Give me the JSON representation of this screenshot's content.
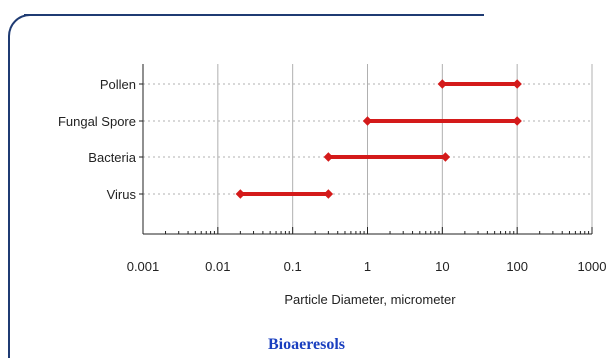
{
  "caption": "Bioaeresols",
  "colors": {
    "frame": "#1f3b73",
    "caption": "#1a3fbf",
    "range": "#d41a1a",
    "grid": "#b0b0b0",
    "axis": "#222222"
  },
  "chart_data": {
    "type": "range-bar",
    "x_scale": "log",
    "xlim": [
      0.001,
      1000
    ],
    "xlabel": "Particle Diameter, micrometer",
    "x_ticks": [
      "0.001",
      "0.01",
      "0.1",
      "1",
      "10",
      "100",
      "1000"
    ],
    "x_tick_values": [
      0.001,
      0.01,
      0.1,
      1,
      10,
      100,
      1000
    ],
    "grid": "vertical solid at decades, horizontal dotted at categories",
    "categories": [
      "Pollen",
      "Fungal Spore",
      "Bacteria",
      "Virus"
    ],
    "ranges": [
      {
        "category": "Pollen",
        "min": 10,
        "max": 100
      },
      {
        "category": "Fungal Spore",
        "min": 1,
        "max": 100
      },
      {
        "category": "Bacteria",
        "min": 0.3,
        "max": 11
      },
      {
        "category": "Virus",
        "min": 0.02,
        "max": 0.3
      }
    ]
  }
}
